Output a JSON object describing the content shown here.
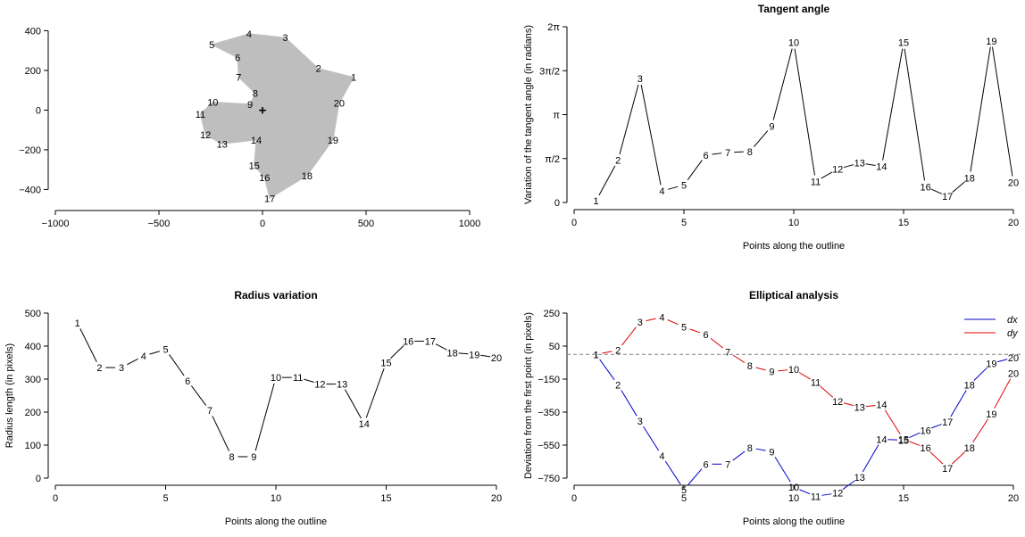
{
  "chart_data": [
    {
      "type": "scatter",
      "panel": "outline",
      "title": "",
      "xlabel": "",
      "ylabel": "",
      "xlim": [
        -1000,
        1000
      ],
      "ylim": [
        -470,
        420
      ],
      "x_ticks": [
        -1000,
        -500,
        0,
        500,
        1000
      ],
      "x_tick_labels": [
        "−1000",
        "−500",
        "0",
        "500",
        "1000"
      ],
      "y_ticks": [
        -400,
        -200,
        0,
        200,
        400
      ],
      "y_tick_labels": [
        "−400",
        "−200",
        "0",
        "200",
        "400"
      ],
      "shape_color": "#bebebe",
      "centroid_marker": "+",
      "centroid": [
        0,
        0
      ],
      "points": [
        {
          "label": "1",
          "x": 440,
          "y": 165
        },
        {
          "label": "2",
          "x": 270,
          "y": 210
        },
        {
          "label": "3",
          "x": 110,
          "y": 365
        },
        {
          "label": "4",
          "x": -65,
          "y": 385
        },
        {
          "label": "5",
          "x": -245,
          "y": 330
        },
        {
          "label": "6",
          "x": -120,
          "y": 265
        },
        {
          "label": "7",
          "x": -115,
          "y": 165
        },
        {
          "label": "8",
          "x": -35,
          "y": 85
        },
        {
          "label": "9",
          "x": -60,
          "y": 30
        },
        {
          "label": "10",
          "x": -240,
          "y": 40
        },
        {
          "label": "11",
          "x": -300,
          "y": -20
        },
        {
          "label": "12",
          "x": -275,
          "y": -125
        },
        {
          "label": "13",
          "x": -195,
          "y": -170
        },
        {
          "label": "14",
          "x": -30,
          "y": -150
        },
        {
          "label": "15",
          "x": -40,
          "y": -280
        },
        {
          "label": "16",
          "x": 10,
          "y": -340
        },
        {
          "label": "17",
          "x": 35,
          "y": -445
        },
        {
          "label": "18",
          "x": 215,
          "y": -330
        },
        {
          "label": "19",
          "x": 340,
          "y": -150
        },
        {
          "label": "20",
          "x": 370,
          "y": 35
        }
      ]
    },
    {
      "type": "line",
      "panel": "tangent",
      "title": "Tangent angle",
      "xlabel": "Points along the outline",
      "ylabel": "Variation of the tangent angle (in radians)",
      "xlim": [
        0,
        20
      ],
      "ylim": [
        0,
        2
      ],
      "y_unit": "pi",
      "x_ticks": [
        0,
        5,
        10,
        15,
        20
      ],
      "y_ticks": [
        0,
        0.5,
        1,
        1.5,
        2
      ],
      "y_tick_labels": [
        "0",
        "π/2",
        "π",
        "3π/2",
        "2π"
      ],
      "x": [
        1,
        2,
        3,
        4,
        5,
        6,
        7,
        8,
        9,
        10,
        11,
        12,
        13,
        14,
        15,
        16,
        17,
        18,
        19,
        20
      ],
      "values": [
        0.02,
        0.48,
        1.41,
        0.13,
        0.2,
        0.54,
        0.57,
        0.58,
        0.87,
        1.82,
        0.24,
        0.38,
        0.45,
        0.41,
        1.82,
        0.18,
        0.07,
        0.28,
        1.84,
        0.23
      ]
    },
    {
      "type": "line",
      "panel": "radius",
      "title": "Radius variation",
      "xlabel": "Points along the outline",
      "ylabel": "Radius length (in pixels)",
      "xlim": [
        0,
        20
      ],
      "ylim": [
        0,
        500
      ],
      "x_ticks": [
        0,
        5,
        10,
        15,
        20
      ],
      "y_ticks": [
        0,
        100,
        200,
        300,
        400,
        500
      ],
      "x": [
        1,
        2,
        3,
        4,
        5,
        6,
        7,
        8,
        9,
        10,
        11,
        12,
        13,
        14,
        15,
        16,
        17,
        18,
        19,
        20
      ],
      "values": [
        470,
        335,
        335,
        370,
        390,
        295,
        205,
        65,
        65,
        305,
        305,
        285,
        285,
        165,
        350,
        415,
        415,
        380,
        375,
        365
      ]
    },
    {
      "type": "line",
      "panel": "elliptical",
      "title": "Elliptical analysis",
      "xlabel": "Points along the outline",
      "ylabel": "Deviation from the first point (in pixels)",
      "xlim": [
        0,
        20
      ],
      "ylim": [
        -750,
        250
      ],
      "x_ticks": [
        0,
        5,
        10,
        15,
        20
      ],
      "y_ticks": [
        -750,
        -550,
        -350,
        -150,
        50,
        250
      ],
      "y_tick_labels": [
        "−750",
        "−550",
        "−350",
        "−150",
        "50",
        "250"
      ],
      "reference_line": 0,
      "legend_position": "top-right",
      "x": [
        1,
        2,
        3,
        4,
        5,
        6,
        7,
        8,
        9,
        10,
        11,
        12,
        13,
        14,
        15,
        16,
        17,
        18,
        19,
        20
      ],
      "series": [
        {
          "name": "dx",
          "color": "#0000cc",
          "values": [
            0,
            -185,
            -405,
            -615,
            -820,
            -665,
            -665,
            -565,
            -590,
            -805,
            -860,
            -840,
            -745,
            -515,
            -520,
            -460,
            -410,
            -185,
            -55,
            -20
          ]
        },
        {
          "name": "dy",
          "color": "#dd0000",
          "values": [
            0,
            25,
            195,
            225,
            165,
            120,
            15,
            -70,
            -105,
            -90,
            -170,
            -285,
            -320,
            -305,
            -515,
            -565,
            -690,
            -565,
            -360,
            -115
          ]
        }
      ]
    }
  ]
}
